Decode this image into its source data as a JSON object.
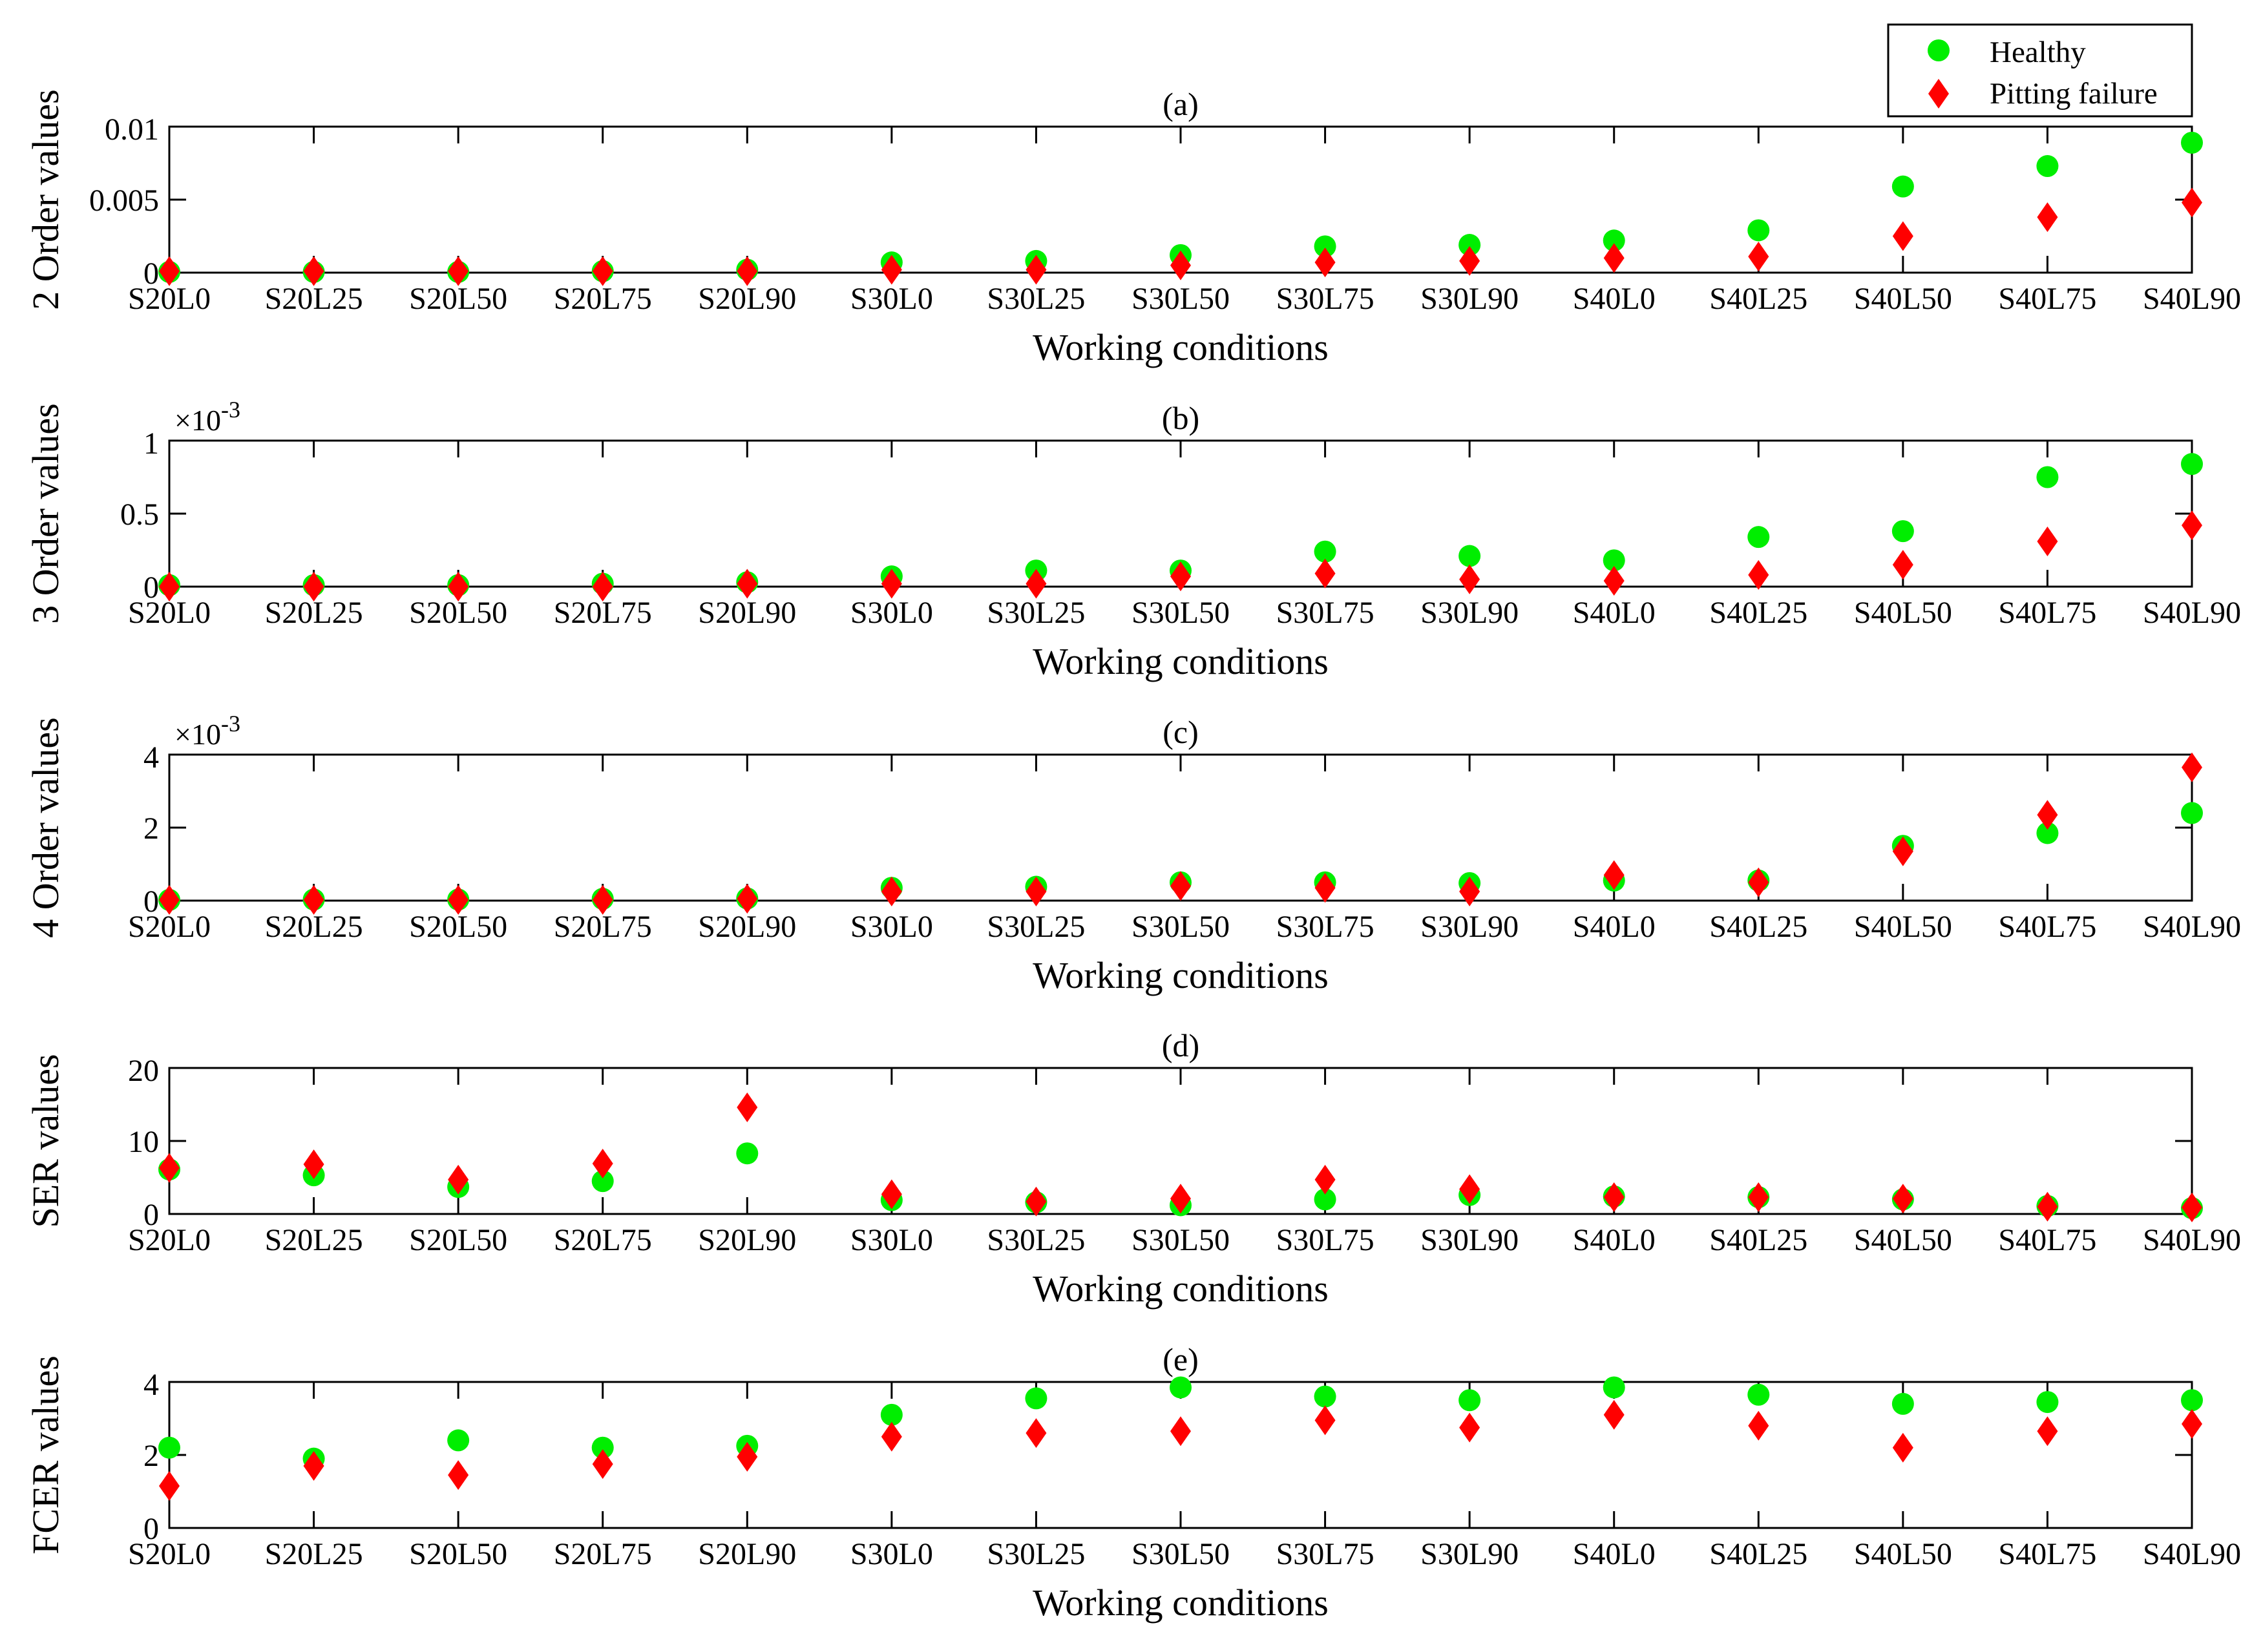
{
  "figure": {
    "legend": {
      "healthy_label": "Healthy",
      "pitting_label": "Pitting failure"
    },
    "colors": {
      "healthy": "#00EE00",
      "pitting": "#FF0000",
      "axes": "#000000"
    }
  },
  "chart_data": [
    {
      "type": "scatter",
      "title": "(a)",
      "xlabel": "Working conditions",
      "ylabel": "2 Order values",
      "exponent_label": "",
      "ylim": [
        0,
        0.01
      ],
      "yticks": [
        0,
        0.005,
        0.01
      ],
      "ytick_labels": [
        "0",
        "0.005",
        "0.01"
      ],
      "categories": [
        "S20L0",
        "S20L25",
        "S20L50",
        "S20L75",
        "S20L90",
        "S30L0",
        "S30L25",
        "S30L50",
        "S30L75",
        "S30L90",
        "S40L0",
        "S40L25",
        "S40L50",
        "S40L75",
        "S40L90"
      ],
      "series": [
        {
          "name": "Healthy",
          "marker": "circle",
          "values": [
            5e-05,
            5e-05,
            5e-05,
            0.0001,
            0.0002,
            0.0007,
            0.0008,
            0.0012,
            0.0018,
            0.0019,
            0.0022,
            0.0029,
            0.0059,
            0.0073,
            0.0089
          ]
        },
        {
          "name": "Pitting failure",
          "marker": "diamond",
          "values": [
            0.0001,
            0.0001,
            0.0001,
            0.0001,
            0.0001,
            0.0002,
            0.0002,
            0.0005,
            0.0007,
            0.0008,
            0.001,
            0.0011,
            0.0025,
            0.0038,
            0.0048
          ]
        }
      ]
    },
    {
      "type": "scatter",
      "title": "(b)",
      "xlabel": "Working conditions",
      "ylabel": "3 Order values",
      "exponent_label": "×10-3",
      "ylim": [
        0,
        1
      ],
      "yticks": [
        0,
        0.5,
        1
      ],
      "ytick_labels": [
        "0",
        "0.5",
        "1"
      ],
      "categories": [
        "S20L0",
        "S20L25",
        "S20L50",
        "S20L75",
        "S20L90",
        "S30L0",
        "S30L25",
        "S30L50",
        "S30L75",
        "S30L90",
        "S40L0",
        "S40L25",
        "S40L50",
        "S40L75",
        "S40L90"
      ],
      "series": [
        {
          "name": "Healthy",
          "marker": "circle",
          "values": [
            0.01,
            0.01,
            0.01,
            0.02,
            0.03,
            0.07,
            0.11,
            0.11,
            0.24,
            0.21,
            0.18,
            0.34,
            0.38,
            0.75,
            0.84
          ]
        },
        {
          "name": "Pitting failure",
          "marker": "diamond",
          "values": [
            0.0,
            0.0,
            0.0,
            0.0,
            0.02,
            0.02,
            0.02,
            0.07,
            0.09,
            0.05,
            0.04,
            0.08,
            0.15,
            0.31,
            0.42
          ]
        }
      ]
    },
    {
      "type": "scatter",
      "title": "(c)",
      "xlabel": "Working conditions",
      "ylabel": "4 Order values",
      "exponent_label": "×10-3",
      "ylim": [
        0,
        4
      ],
      "yticks": [
        0,
        2,
        4
      ],
      "ytick_labels": [
        "0",
        "2",
        "4"
      ],
      "categories": [
        "S20L0",
        "S20L25",
        "S20L50",
        "S20L75",
        "S20L90",
        "S30L0",
        "S30L25",
        "S30L50",
        "S30L75",
        "S30L90",
        "S40L0",
        "S40L25",
        "S40L50",
        "S40L75",
        "S40L90"
      ],
      "series": [
        {
          "name": "Healthy",
          "marker": "circle",
          "values": [
            0.02,
            0.03,
            0.03,
            0.05,
            0.06,
            0.35,
            0.38,
            0.5,
            0.5,
            0.48,
            0.55,
            0.55,
            1.5,
            1.85,
            2.4
          ]
        },
        {
          "name": "Pitting failure",
          "marker": "diamond",
          "values": [
            0.02,
            0.02,
            0.02,
            0.02,
            0.05,
            0.25,
            0.25,
            0.4,
            0.35,
            0.25,
            0.7,
            0.5,
            1.35,
            2.35,
            3.65
          ]
        }
      ]
    },
    {
      "type": "scatter",
      "title": "(d)",
      "xlabel": "Working conditions",
      "ylabel": "SER values",
      "exponent_label": "",
      "ylim": [
        0,
        20
      ],
      "yticks": [
        0,
        10,
        20
      ],
      "ytick_labels": [
        "0",
        "10",
        "20"
      ],
      "categories": [
        "S20L0",
        "S20L25",
        "S20L50",
        "S20L75",
        "S20L90",
        "S30L0",
        "S30L25",
        "S30L50",
        "S30L75",
        "S30L90",
        "S40L0",
        "S40L25",
        "S40L50",
        "S40L75",
        "S40L90"
      ],
      "series": [
        {
          "name": "Healthy",
          "marker": "circle",
          "values": [
            6.1,
            5.3,
            3.7,
            4.5,
            8.3,
            1.9,
            1.6,
            1.2,
            2.0,
            2.6,
            2.4,
            2.3,
            2.0,
            1.1,
            0.8
          ]
        },
        {
          "name": "Pitting failure",
          "marker": "diamond",
          "values": [
            6.3,
            6.8,
            4.7,
            6.9,
            14.6,
            2.7,
            1.7,
            2.1,
            4.7,
            3.4,
            2.3,
            2.3,
            2.1,
            1.0,
            0.9
          ]
        }
      ]
    },
    {
      "type": "scatter",
      "title": "(e)",
      "xlabel": "Working conditions",
      "ylabel": "FCER values",
      "exponent_label": "",
      "ylim": [
        0,
        4
      ],
      "yticks": [
        0,
        2,
        4
      ],
      "ytick_labels": [
        "0",
        "2",
        "4"
      ],
      "categories": [
        "S20L0",
        "S20L25",
        "S20L50",
        "S20L75",
        "S20L90",
        "S30L0",
        "S30L25",
        "S30L50",
        "S30L75",
        "S30L90",
        "S40L0",
        "S40L25",
        "S40L50",
        "S40L75",
        "S40L90"
      ],
      "series": [
        {
          "name": "Healthy",
          "marker": "circle",
          "values": [
            2.2,
            1.9,
            2.4,
            2.2,
            2.25,
            3.1,
            3.55,
            3.85,
            3.6,
            3.5,
            3.85,
            3.65,
            3.4,
            3.45,
            3.5
          ]
        },
        {
          "name": "Pitting failure",
          "marker": "diamond",
          "values": [
            1.15,
            1.7,
            1.45,
            1.75,
            1.95,
            2.5,
            2.6,
            2.65,
            2.95,
            2.75,
            3.1,
            2.8,
            2.2,
            2.65,
            2.85
          ]
        }
      ]
    }
  ]
}
